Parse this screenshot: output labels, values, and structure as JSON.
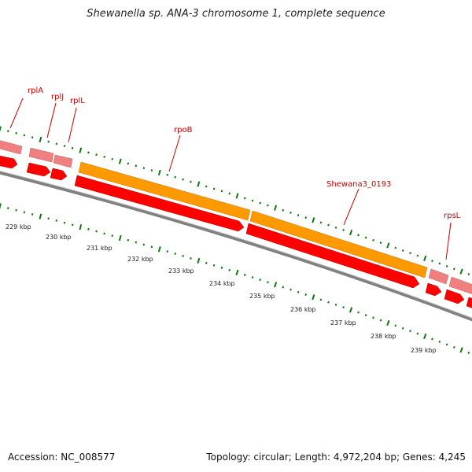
{
  "title": "Shewanella sp. ANA-3 chromosome 1, complete sequence",
  "footer": {
    "accession": "Accession: NC_008577",
    "summary": "Topology: circular; Length: 4,972,204 bp; Genes: 4,245"
  },
  "colors": {
    "backbone": "#808080",
    "tick": "#0a7a0a",
    "gene_forward": "#ff0000",
    "gene_pink": "#f08080",
    "gene_orange": "#ff9900",
    "label": "#cc0000"
  },
  "gene_labels": [
    "rplA",
    "rplJ",
    "rplL",
    "rpoB",
    "Shewana3_0193",
    "rpsL"
  ],
  "kbp_labels": [
    "229 kbp",
    "230 kbp",
    "231 kbp",
    "232 kbp",
    "233 kbp",
    "234 kbp",
    "235 kbp",
    "236 kbp",
    "237 kbp",
    "238 kbp",
    "239 kbp"
  ]
}
